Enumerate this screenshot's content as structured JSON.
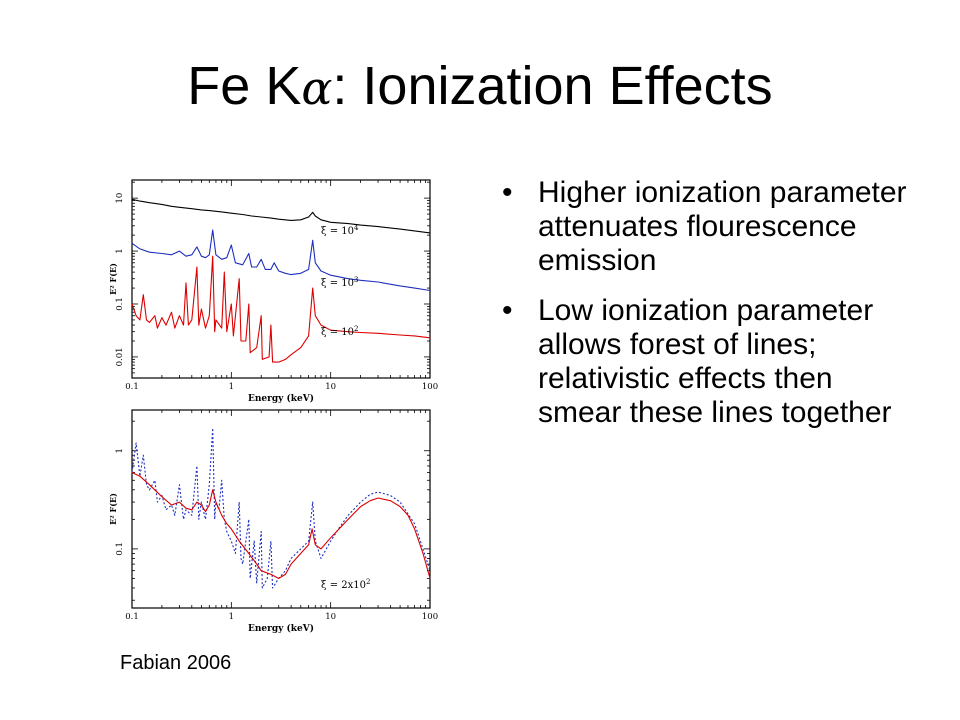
{
  "slide": {
    "title_prefix": "Fe K",
    "title_alpha": "α",
    "title_suffix": ": Ionization Effects",
    "bullets": [
      "Higher ionization parameter attenuates flourescence emission",
      "Low ionization parameter allows forest of lines; relativistic effects then smear these lines together"
    ],
    "bullet_glyph": "•",
    "credit": "Fabian 2006"
  },
  "chart_data": [
    {
      "type": "line",
      "xlabel": "Energy (keV)",
      "ylabel": "E² F(E)",
      "xscale": "log",
      "yscale": "log",
      "xlim": [
        0.1,
        100
      ],
      "ylim": [
        0.004,
        22
      ],
      "xticks": [
        0.1,
        1,
        10,
        100
      ],
      "xticklabels": [
        "0.1",
        "1",
        "10",
        "100"
      ],
      "yticks": [
        0.01,
        0.1,
        1,
        10
      ],
      "yticklabels": [
        "0.01",
        "0.1",
        "1",
        "10"
      ],
      "series": [
        {
          "color": "#000000",
          "annotation": {
            "prefix": "ξ = 10",
            "sup": "4",
            "x": 8,
            "y": 2.1
          },
          "points": [
            [
              0.1,
              9.5
            ],
            [
              0.12,
              8.8
            ],
            [
              0.15,
              8.2
            ],
            [
              0.2,
              7.6
            ],
            [
              0.25,
              7.0
            ],
            [
              0.3,
              6.7
            ],
            [
              0.4,
              6.3
            ],
            [
              0.5,
              6.0
            ],
            [
              0.6,
              5.8
            ],
            [
              0.8,
              5.5
            ],
            [
              1.0,
              5.2
            ],
            [
              1.3,
              4.9
            ],
            [
              1.6,
              4.6
            ],
            [
              2,
              4.4
            ],
            [
              2.5,
              4.2
            ],
            [
              3,
              4.0
            ],
            [
              4,
              3.8
            ],
            [
              5,
              3.9
            ],
            [
              6,
              4.4
            ],
            [
              6.6,
              5.4
            ],
            [
              7,
              4.6
            ],
            [
              8,
              3.9
            ],
            [
              10,
              3.5
            ],
            [
              15,
              3.3
            ],
            [
              20,
              3.1
            ],
            [
              30,
              2.9
            ],
            [
              50,
              2.6
            ],
            [
              70,
              2.4
            ],
            [
              100,
              2.2
            ]
          ]
        },
        {
          "color": "#1f2fbf",
          "annotation": {
            "prefix": "ξ = 10",
            "sup": "3",
            "x": 8,
            "y": 0.22
          },
          "points": [
            [
              0.1,
              1.4
            ],
            [
              0.12,
              1.1
            ],
            [
              0.15,
              0.95
            ],
            [
              0.2,
              0.9
            ],
            [
              0.25,
              0.85
            ],
            [
              0.3,
              1.0
            ],
            [
              0.35,
              0.8
            ],
            [
              0.4,
              0.85
            ],
            [
              0.45,
              1.2
            ],
            [
              0.5,
              0.8
            ],
            [
              0.55,
              0.75
            ],
            [
              0.6,
              0.85
            ],
            [
              0.65,
              2.5
            ],
            [
              0.7,
              0.85
            ],
            [
              0.8,
              0.7
            ],
            [
              0.9,
              0.75
            ],
            [
              1.0,
              1.3
            ],
            [
              1.1,
              0.6
            ],
            [
              1.3,
              0.55
            ],
            [
              1.5,
              0.9
            ],
            [
              1.6,
              0.5
            ],
            [
              1.8,
              0.5
            ],
            [
              2.0,
              0.7
            ],
            [
              2.2,
              0.45
            ],
            [
              2.5,
              0.45
            ],
            [
              2.7,
              0.6
            ],
            [
              3.0,
              0.42
            ],
            [
              3.5,
              0.38
            ],
            [
              4,
              0.36
            ],
            [
              5,
              0.38
            ],
            [
              6,
              0.45
            ],
            [
              6.6,
              1.6
            ],
            [
              7,
              0.6
            ],
            [
              8,
              0.42
            ],
            [
              10,
              0.35
            ],
            [
              15,
              0.3
            ],
            [
              20,
              0.28
            ],
            [
              30,
              0.26
            ],
            [
              50,
              0.22
            ],
            [
              70,
              0.2
            ],
            [
              100,
              0.18
            ]
          ]
        },
        {
          "color": "#dd0000",
          "annotation": {
            "prefix": "ξ = 10",
            "sup": "2",
            "x": 8,
            "y": 0.026
          },
          "points": [
            [
              0.1,
              0.1
            ],
            [
              0.11,
              0.06
            ],
            [
              0.12,
              0.05
            ],
            [
              0.13,
              0.15
            ],
            [
              0.14,
              0.05
            ],
            [
              0.15,
              0.045
            ],
            [
              0.17,
              0.06
            ],
            [
              0.18,
              0.035
            ],
            [
              0.2,
              0.055
            ],
            [
              0.22,
              0.04
            ],
            [
              0.25,
              0.07
            ],
            [
              0.27,
              0.035
            ],
            [
              0.3,
              0.06
            ],
            [
              0.33,
              0.04
            ],
            [
              0.35,
              0.25
            ],
            [
              0.37,
              0.04
            ],
            [
              0.4,
              0.05
            ],
            [
              0.45,
              0.5
            ],
            [
              0.47,
              0.04
            ],
            [
              0.5,
              0.08
            ],
            [
              0.55,
              0.035
            ],
            [
              0.6,
              0.06
            ],
            [
              0.65,
              0.8
            ],
            [
              0.68,
              0.03
            ],
            [
              0.7,
              0.05
            ],
            [
              0.8,
              0.035
            ],
            [
              0.85,
              0.4
            ],
            [
              0.9,
              0.03
            ],
            [
              1.0,
              0.1
            ],
            [
              1.05,
              0.025
            ],
            [
              1.2,
              0.3
            ],
            [
              1.25,
              0.02
            ],
            [
              1.4,
              0.02
            ],
            [
              1.5,
              0.1
            ],
            [
              1.55,
              0.012
            ],
            [
              1.8,
              0.015
            ],
            [
              2.0,
              0.06
            ],
            [
              2.05,
              0.009
            ],
            [
              2.4,
              0.01
            ],
            [
              2.5,
              0.04
            ],
            [
              2.6,
              0.008
            ],
            [
              3,
              0.008
            ],
            [
              3.5,
              0.009
            ],
            [
              4,
              0.011
            ],
            [
              5,
              0.015
            ],
            [
              6,
              0.025
            ],
            [
              6.6,
              0.2
            ],
            [
              7,
              0.06
            ],
            [
              8,
              0.04
            ],
            [
              10,
              0.032
            ],
            [
              15,
              0.03
            ],
            [
              20,
              0.029
            ],
            [
              30,
              0.028
            ],
            [
              50,
              0.026
            ],
            [
              70,
              0.025
            ],
            [
              100,
              0.023
            ]
          ]
        }
      ]
    },
    {
      "type": "line",
      "xlabel": "Energy (keV)",
      "ylabel": "E² F(E)",
      "xscale": "log",
      "yscale": "log",
      "xlim": [
        0.1,
        100
      ],
      "ylim": [
        0.025,
        2.6
      ],
      "xticks": [
        0.1,
        1,
        10,
        100
      ],
      "xticklabels": [
        "0.1",
        "1",
        "10",
        "100"
      ],
      "yticks": [
        0.1,
        1
      ],
      "yticklabels": [
        "0.1",
        "1"
      ],
      "annotation": {
        "prefix": "ξ = 2x10",
        "sup": "2",
        "x": 8,
        "y": 0.04
      },
      "series": [
        {
          "color": "#1f2fbf",
          "dash": "2,2",
          "points": [
            [
              0.1,
              0.6
            ],
            [
              0.11,
              1.2
            ],
            [
              0.12,
              0.55
            ],
            [
              0.13,
              0.9
            ],
            [
              0.14,
              0.45
            ],
            [
              0.15,
              0.4
            ],
            [
              0.17,
              0.5
            ],
            [
              0.18,
              0.3
            ],
            [
              0.2,
              0.35
            ],
            [
              0.22,
              0.25
            ],
            [
              0.25,
              0.28
            ],
            [
              0.27,
              0.22
            ],
            [
              0.3,
              0.45
            ],
            [
              0.33,
              0.2
            ],
            [
              0.35,
              0.25
            ],
            [
              0.4,
              0.22
            ],
            [
              0.45,
              0.7
            ],
            [
              0.47,
              0.2
            ],
            [
              0.5,
              0.3
            ],
            [
              0.55,
              0.2
            ],
            [
              0.6,
              0.45
            ],
            [
              0.65,
              1.7
            ],
            [
              0.68,
              0.2
            ],
            [
              0.7,
              0.3
            ],
            [
              0.75,
              0.25
            ],
            [
              0.8,
              0.5
            ],
            [
              0.85,
              0.2
            ],
            [
              0.9,
              0.15
            ],
            [
              1.0,
              0.12
            ],
            [
              1.1,
              0.09
            ],
            [
              1.2,
              0.3
            ],
            [
              1.25,
              0.08
            ],
            [
              1.3,
              0.07
            ],
            [
              1.5,
              0.2
            ],
            [
              1.55,
              0.05
            ],
            [
              1.7,
              0.12
            ],
            [
              1.8,
              0.045
            ],
            [
              2.0,
              0.15
            ],
            [
              2.05,
              0.04
            ],
            [
              2.3,
              0.05
            ],
            [
              2.5,
              0.12
            ],
            [
              2.6,
              0.04
            ],
            [
              3.0,
              0.05
            ],
            [
              3.5,
              0.06
            ],
            [
              4,
              0.08
            ],
            [
              5,
              0.1
            ],
            [
              6,
              0.12
            ],
            [
              6.6,
              0.3
            ],
            [
              7,
              0.12
            ],
            [
              8,
              0.08
            ],
            [
              10,
              0.12
            ],
            [
              12,
              0.16
            ],
            [
              15,
              0.22
            ],
            [
              20,
              0.3
            ],
            [
              25,
              0.36
            ],
            [
              30,
              0.38
            ],
            [
              40,
              0.35
            ],
            [
              50,
              0.3
            ],
            [
              70,
              0.18
            ],
            [
              85,
              0.1
            ],
            [
              100,
              0.06
            ]
          ]
        },
        {
          "color": "#dd0000",
          "points": [
            [
              0.1,
              0.6
            ],
            [
              0.12,
              0.55
            ],
            [
              0.15,
              0.45
            ],
            [
              0.2,
              0.34
            ],
            [
              0.25,
              0.28
            ],
            [
              0.3,
              0.3
            ],
            [
              0.35,
              0.26
            ],
            [
              0.4,
              0.25
            ],
            [
              0.45,
              0.3
            ],
            [
              0.5,
              0.28
            ],
            [
              0.55,
              0.24
            ],
            [
              0.6,
              0.28
            ],
            [
              0.65,
              0.4
            ],
            [
              0.7,
              0.3
            ],
            [
              0.8,
              0.22
            ],
            [
              0.9,
              0.18
            ],
            [
              1.0,
              0.16
            ],
            [
              1.2,
              0.12
            ],
            [
              1.5,
              0.09
            ],
            [
              1.8,
              0.07
            ],
            [
              2.0,
              0.06
            ],
            [
              2.5,
              0.055
            ],
            [
              3,
              0.05
            ],
            [
              3.5,
              0.055
            ],
            [
              4,
              0.07
            ],
            [
              5,
              0.09
            ],
            [
              6,
              0.11
            ],
            [
              6.5,
              0.16
            ],
            [
              7,
              0.11
            ],
            [
              8,
              0.1
            ],
            [
              10,
              0.13
            ],
            [
              15,
              0.2
            ],
            [
              20,
              0.27
            ],
            [
              25,
              0.31
            ],
            [
              30,
              0.33
            ],
            [
              40,
              0.31
            ],
            [
              50,
              0.27
            ],
            [
              60,
              0.22
            ],
            [
              70,
              0.16
            ],
            [
              85,
              0.09
            ],
            [
              100,
              0.05
            ]
          ]
        }
      ]
    }
  ]
}
